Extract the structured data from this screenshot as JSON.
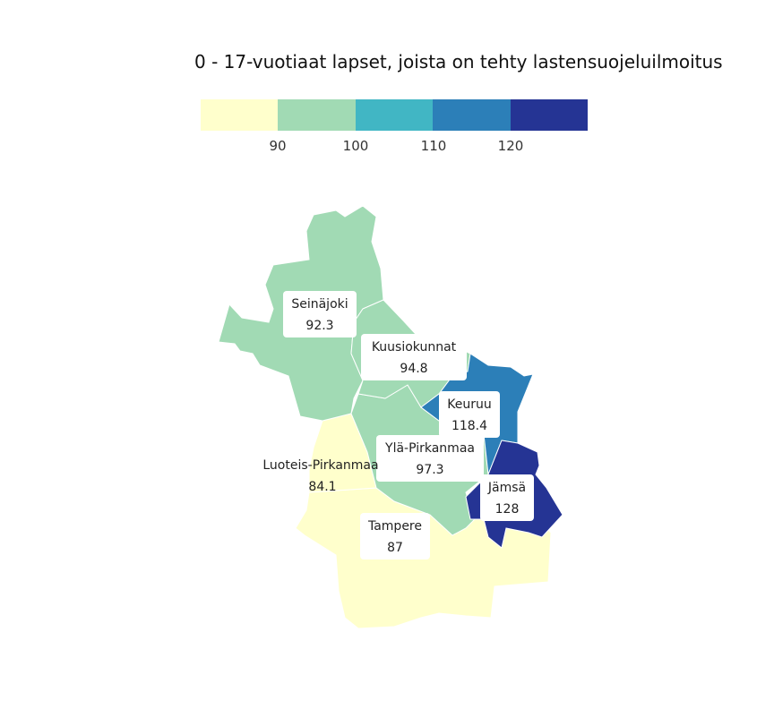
{
  "title": "0 - 17-vuotiaat lapset, joista on tehty lastensuojeluilmoitus",
  "legend": {
    "bins": [
      "#ffffcc",
      "#a1dab4",
      "#41b6c4",
      "#2c7fb8",
      "#253494"
    ],
    "ticks": [
      "90",
      "100",
      "110",
      "120"
    ]
  },
  "chart_data": {
    "type": "choropleth",
    "regions": [
      {
        "name": "Seinäjoki",
        "value": 92.3,
        "color": "#a1dab4"
      },
      {
        "name": "Kuusiokunnat",
        "value": 94.8,
        "color": "#a1dab4"
      },
      {
        "name": "Keuruu",
        "value": 118.4,
        "color": "#2c7fb8"
      },
      {
        "name": "Ylä-Pirkanmaa",
        "value": 97.3,
        "color": "#a1dab4"
      },
      {
        "name": "Luoteis-Pirkanmaa",
        "value": 84.1,
        "color": "#ffffcc"
      },
      {
        "name": "Jämsä",
        "value": 128,
        "color": "#253494"
      },
      {
        "name": "Tampere",
        "value": 87,
        "color": "#ffffcc"
      }
    ]
  }
}
